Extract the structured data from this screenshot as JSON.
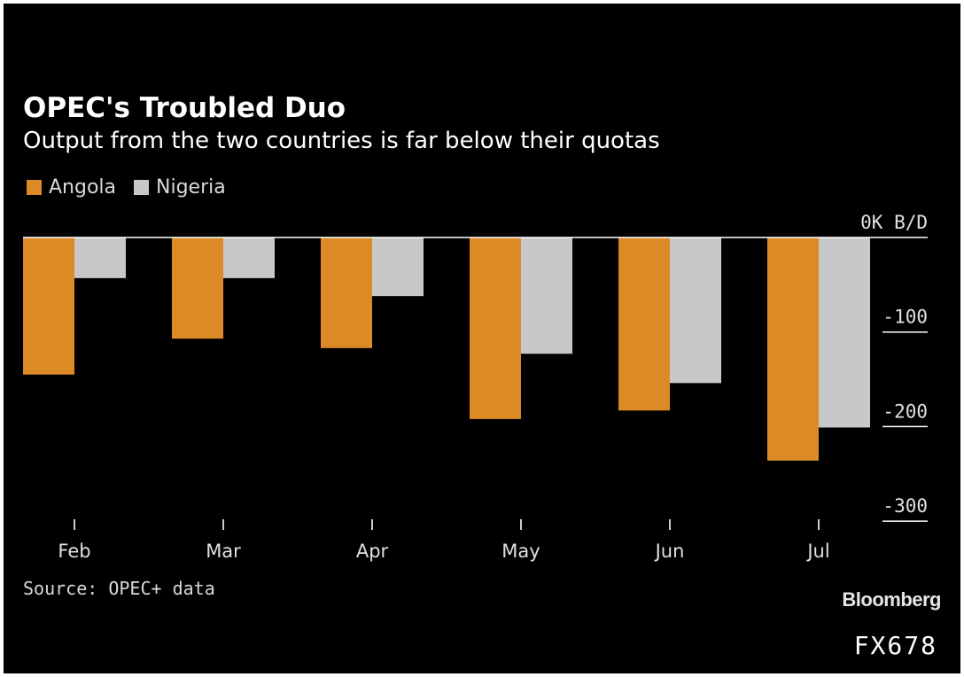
{
  "header": {
    "title": "OPEC's Troubled Duo",
    "subtitle": "Output from the two countries is far below their quotas"
  },
  "footer": {
    "source": "Source: OPEC+ data",
    "brand": "Bloomberg",
    "terminal_code": "FX678"
  },
  "colors": {
    "background": "#000000",
    "angola": "#dc8a26",
    "nigeria": "#c8c8c8",
    "axis": "#ffffff"
  },
  "chart_data": {
    "type": "bar",
    "title": "OPEC's Troubled Duo",
    "subtitle": "Output from the two countries is far below their quotas",
    "categories": [
      "Feb",
      "Mar",
      "Apr",
      "May",
      "Jun",
      "Jul"
    ],
    "series": [
      {
        "name": "Angola",
        "values": [
          -145,
          -107,
          -117,
          -192,
          -183,
          -236
        ]
      },
      {
        "name": "Nigeria",
        "values": [
          -43,
          -43,
          -62,
          -123,
          -154,
          -201
        ]
      }
    ],
    "yticks": [
      0,
      -100,
      -200,
      -300
    ],
    "ytick_labels": [
      "0K B/D",
      "-100",
      "-200",
      "-300"
    ],
    "ylim": [
      -300,
      0
    ],
    "ylabel": "",
    "xlabel": "",
    "legend_position": "top-left",
    "grid": false
  }
}
